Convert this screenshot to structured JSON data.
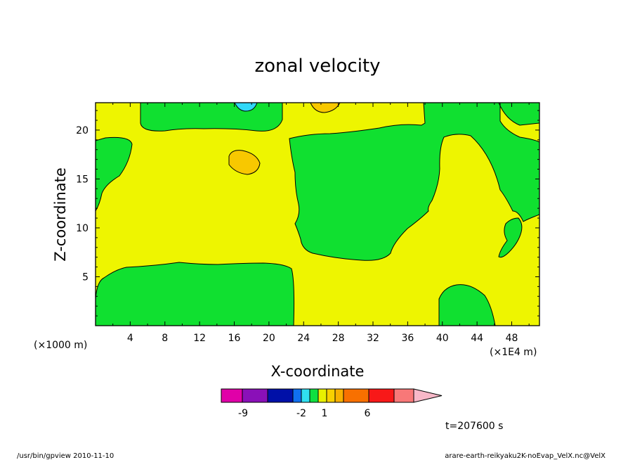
{
  "chart_data": {
    "type": "heatmap",
    "title": "zonal velocity",
    "xlabel": "X-coordinate",
    "ylabel": "Z-coordinate",
    "x_unit_left": "(×1000 m)",
    "x_unit_right": "(×1E4 m)",
    "x_ticks": [
      "4",
      "8",
      "12",
      "16",
      "20",
      "24",
      "28",
      "32",
      "36",
      "40",
      "44",
      "48"
    ],
    "y_ticks": [
      "5",
      "10",
      "15",
      "20"
    ],
    "xlim": [
      0,
      51.2
    ],
    "ylim": [
      0,
      22.8
    ],
    "colorbar": {
      "labels": [
        {
          "text": "-9",
          "pos": -9
        },
        {
          "text": "-2",
          "pos": -2
        },
        {
          "text": "1",
          "pos": 1
        },
        {
          "text": "6",
          "pos": 6
        }
      ],
      "colors": [
        "#e000a8",
        "#8a10b8",
        "#0010a8",
        "#1070f0",
        "#30e0f0",
        "#10e040",
        "#e8f000",
        "#f8d000",
        "#f8b000",
        "#f87000",
        "#f81818",
        "#f87878",
        "#f8b8c8"
      ]
    },
    "colors": {
      "background_field": "#eef500",
      "green": "#10e030",
      "orange": "#f8c800",
      "cyan": "#30d8f8"
    },
    "time_label": "t=207600 s",
    "footer_left": "/usr/bin/gpview   2010-11-10",
    "footer_right": "arare-earth-reikyaku2K-noEvap_VelX.nc@VelX"
  }
}
